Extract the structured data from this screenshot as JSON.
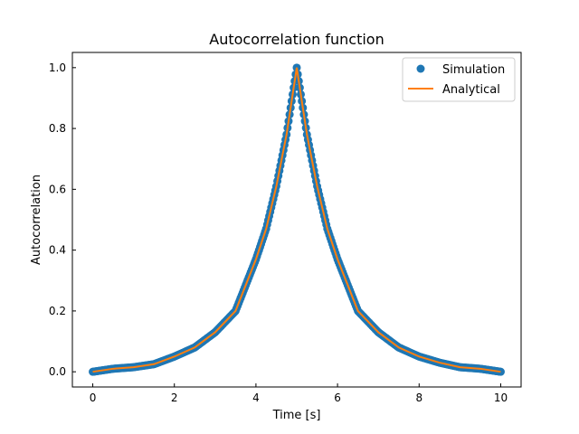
{
  "chart_data": {
    "type": "scatter",
    "title": "Autocorrelation function",
    "xlabel": "Time [s]",
    "ylabel": "Autocorrelation",
    "xlim": [
      -0.5,
      10.5
    ],
    "ylim": [
      -0.05,
      1.05
    ],
    "x_ticks": [
      0,
      2,
      4,
      6,
      8,
      10
    ],
    "x_tick_labels": [
      "0",
      "2",
      "4",
      "6",
      "8",
      "10"
    ],
    "y_ticks": [
      0.0,
      0.2,
      0.4,
      0.6,
      0.8,
      1.0
    ],
    "y_tick_labels": [
      "0.0",
      "0.2",
      "0.4",
      "0.6",
      "0.8",
      "1.0"
    ],
    "grid": false,
    "legend_position": "top-right",
    "series": [
      {
        "name": "Simulation",
        "kind": "markers",
        "color": "#1f77b4",
        "x": [
          0,
          0.5,
          1,
          1.5,
          2,
          2.5,
          3,
          3.5,
          4,
          4.25,
          4.5,
          4.75,
          5,
          5.25,
          5.5,
          5.75,
          6,
          6.5,
          7,
          7.5,
          8,
          8.5,
          9,
          9.5,
          10
        ],
        "y": [
          0.0,
          0.01,
          0.015,
          0.025,
          0.05,
          0.08,
          0.13,
          0.2,
          0.37,
          0.47,
          0.61,
          0.78,
          1.0,
          0.78,
          0.61,
          0.47,
          0.37,
          0.2,
          0.13,
          0.08,
          0.05,
          0.03,
          0.015,
          0.01,
          0.0
        ]
      },
      {
        "name": "Analytical",
        "kind": "line",
        "color": "#ff7f0e",
        "x": [
          0,
          0.5,
          1,
          1.5,
          2,
          2.5,
          3,
          3.5,
          4,
          4.25,
          4.5,
          4.75,
          5,
          5.25,
          5.5,
          5.75,
          6,
          6.5,
          7,
          7.5,
          8,
          8.5,
          9,
          9.5,
          10
        ],
        "y": [
          0.0,
          0.01,
          0.015,
          0.025,
          0.05,
          0.08,
          0.13,
          0.2,
          0.37,
          0.47,
          0.61,
          0.78,
          1.0,
          0.78,
          0.61,
          0.47,
          0.37,
          0.2,
          0.13,
          0.08,
          0.05,
          0.03,
          0.015,
          0.01,
          0.0
        ]
      }
    ]
  }
}
